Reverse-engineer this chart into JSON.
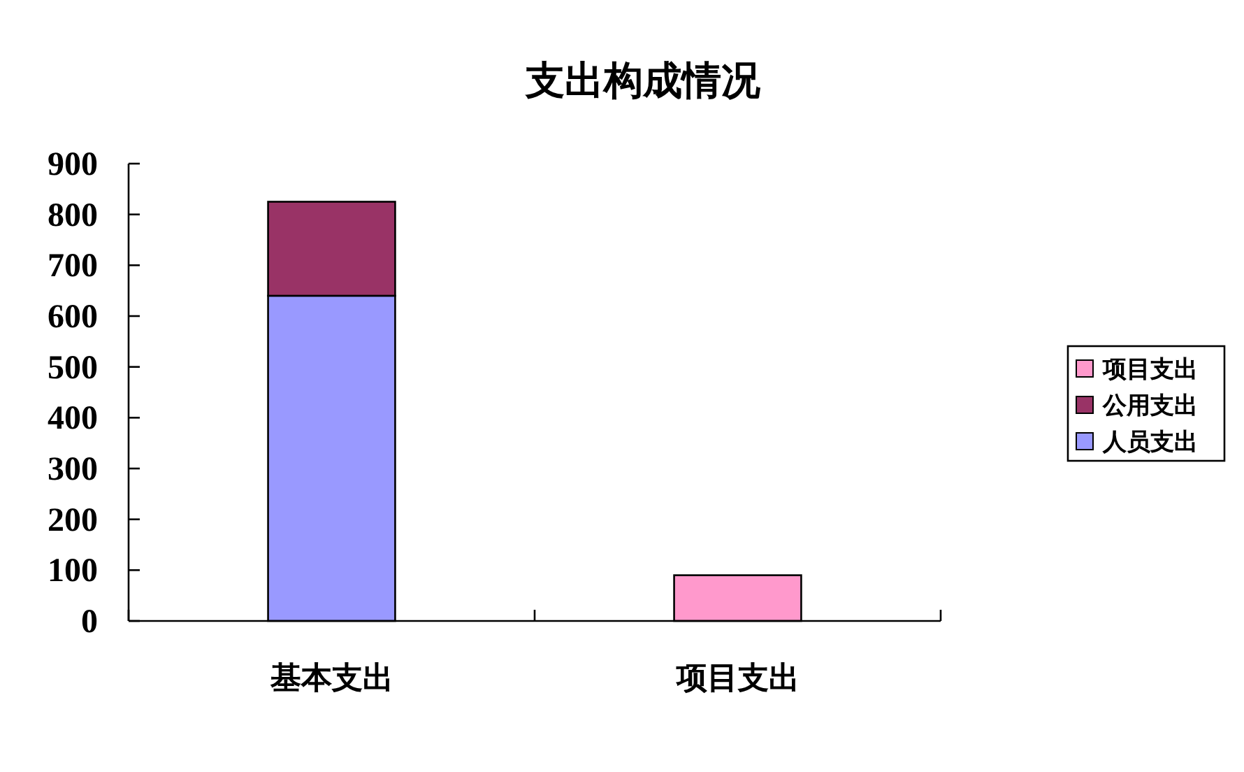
{
  "chart_data": {
    "type": "bar",
    "title": "支出构成情况",
    "categories": [
      "基本支出",
      "项目支出"
    ],
    "stacked": true,
    "series": [
      {
        "name": "人员支出",
        "color": "#9999ff",
        "values": [
          640,
          null
        ]
      },
      {
        "name": "公用支出",
        "color": "#993366",
        "values": [
          185,
          null
        ]
      },
      {
        "name": "项目支出",
        "color": "#ff99cc",
        "values": [
          null,
          90
        ]
      }
    ],
    "ylim": [
      0,
      900
    ],
    "yticks": [
      0,
      100,
      200,
      300,
      400,
      500,
      600,
      700,
      800,
      900
    ],
    "legend": "right",
    "grid": false
  }
}
